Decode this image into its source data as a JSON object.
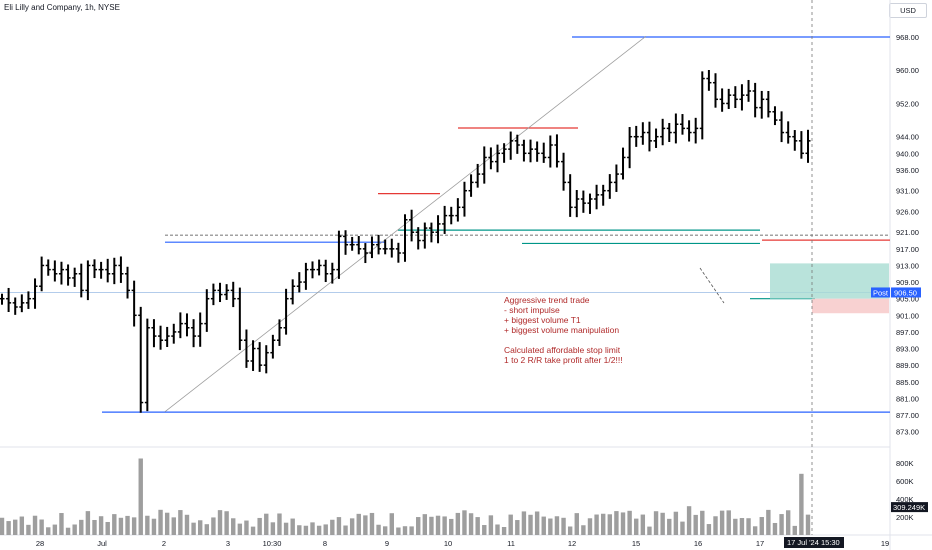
{
  "header": {
    "symbol": "Eli Lilly and Company, 1h, NYSE",
    "currency": "USD"
  },
  "price_labels": {
    "post_tag": "Post",
    "post_price": "906.50",
    "volume_value": "309.249K",
    "date_tag": "17 Jul '24",
    "time_tag": "15:30"
  },
  "annotation": [
    "Aggressive trend trade",
    "- short impulse",
    "+ biggest volume T1",
    "+ biggest volume manipulation",
    "",
    "Calculated affordable stop limit",
    "1 to 2 R/R take profit after 1/2!!!"
  ],
  "colors": {
    "bars": "#000000",
    "blue_level": "#2962ff",
    "red_level": "#e53935",
    "green_level": "#009688",
    "volume": "#9e9e9e",
    "note": "#b02a2a"
  },
  "chart_data": {
    "type": "bar",
    "title": "Eli Lilly and Company, 1h, NYSE",
    "price_axis_ticks": [
      "968.00",
      "960.00",
      "952.00",
      "944.00",
      "940.00",
      "936.00",
      "931.00",
      "926.00",
      "921.00",
      "917.00",
      "913.00",
      "909.00",
      "905.00",
      "901.00",
      "897.00",
      "893.00",
      "889.00",
      "885.00",
      "881.00",
      "877.00",
      "873.00"
    ],
    "volume_axis_ticks": [
      "800K",
      "600K",
      "400K",
      "200K"
    ],
    "time_axis_ticks": [
      "28",
      "Jul",
      "2",
      "3",
      "10:30",
      "8",
      "9",
      "10",
      "11",
      "12",
      "15",
      "16",
      "17",
      "19"
    ],
    "ylim": [
      871,
      974
    ],
    "levels": [
      {
        "color": "blue",
        "price": 968.0
      },
      {
        "color": "blue",
        "price": 918.6
      },
      {
        "color": "blue",
        "price": 877.7
      },
      {
        "color": "red",
        "price": 930.3
      },
      {
        "color": "red",
        "price": 946.1
      },
      {
        "color": "red",
        "price": 919.1
      },
      {
        "color": "green",
        "price": 921.5
      },
      {
        "color": "green",
        "price": 918.3
      },
      {
        "color": "green",
        "price": 905.0
      }
    ],
    "post_market_price": 906.5,
    "last_volume": "309.249K",
    "close_prices": [
      905,
      904,
      903,
      904,
      905,
      908,
      913,
      912,
      911,
      912,
      910,
      911,
      907,
      913,
      912,
      912,
      911,
      913,
      911,
      907,
      901,
      880,
      898,
      896,
      895,
      896,
      897,
      899,
      898,
      896,
      899,
      905,
      907,
      906,
      907,
      905,
      895,
      890,
      893,
      889,
      892,
      895,
      898,
      905,
      908,
      909,
      912,
      912,
      913,
      911,
      912,
      920,
      918,
      918,
      917,
      916,
      918,
      917,
      917,
      917,
      916,
      924,
      921,
      919,
      922,
      921,
      923,
      925,
      925,
      927,
      931,
      933,
      935,
      939,
      938,
      940,
      941,
      943,
      942,
      940,
      941,
      940,
      939,
      942,
      938,
      933,
      927,
      929,
      928,
      929,
      930,
      931,
      933,
      935,
      939,
      944,
      944,
      945,
      943,
      944,
      946,
      945,
      947,
      946,
      945,
      946,
      958,
      957,
      953,
      952,
      954,
      953,
      954,
      955,
      951,
      953,
      950,
      948,
      945,
      944,
      943,
      940,
      943
    ]
  }
}
